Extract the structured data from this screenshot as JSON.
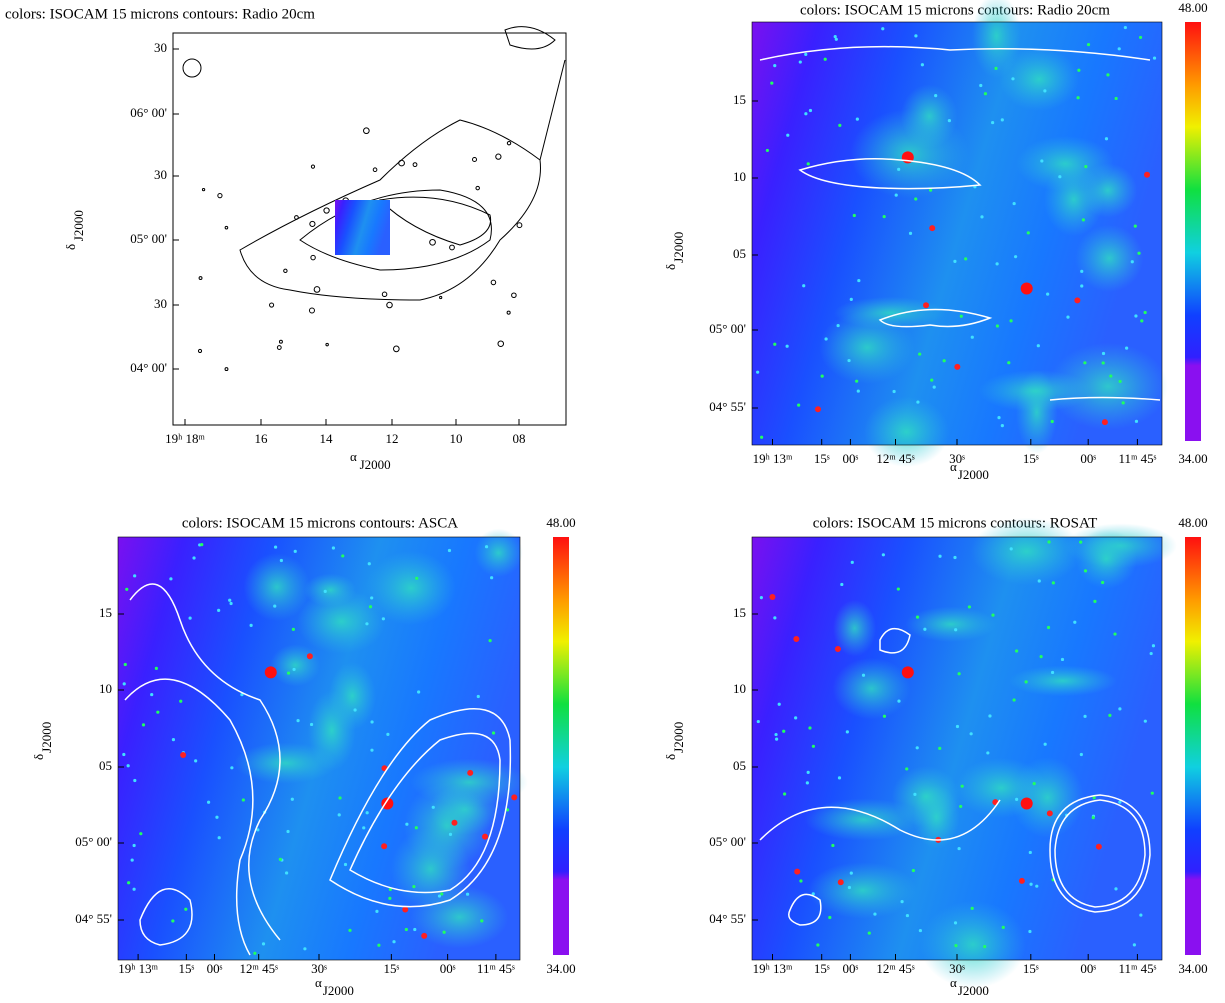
{
  "panels": [
    {
      "title": "colors: ISOCAM 15 microns  contours: Radio 20cm",
      "y_ticks": [
        "30",
        "06° 00'",
        "30",
        "05° 00'",
        "30",
        "04° 00'"
      ],
      "x_ticks": [
        "19ʰ 18ᵐ",
        "16",
        "14",
        "12",
        "10",
        "08"
      ],
      "x_label": {
        "symbol": "α",
        "subscript": "J2000"
      },
      "y_label": {
        "symbol": "δ",
        "subscript": "J2000"
      }
    },
    {
      "title": "colors: ISOCAM 15 microns    contours: Radio 20cm",
      "y_ticks": [
        "15",
        "10",
        "05",
        "05° 00'",
        "04° 55'"
      ],
      "x_ticks": [
        "19ʰ 13ᵐ",
        "15ˢ",
        "00ˢ",
        "12ᵐ 45ˢ",
        "30ˢ",
        "15ˢ",
        "00ˢ",
        "11ᵐ 45ˢ"
      ],
      "x_label": {
        "symbol": "α",
        "subscript": "J2000"
      },
      "y_label": {
        "symbol": "δ",
        "subscript": "J2000"
      },
      "colorbar": {
        "max": "48.00",
        "min": "34.00"
      }
    },
    {
      "title": "colors: ISOCAM 15 microns    contours: ASCA",
      "y_ticks": [
        "15",
        "10",
        "05",
        "05° 00'",
        "04° 55'"
      ],
      "x_ticks": [
        "19ʰ 13ᵐ",
        "15ˢ",
        "00ˢ",
        "12ᵐ 45ˢ",
        "30ˢ",
        "15ˢ",
        "00ˢ",
        "11ᵐ 45ˢ"
      ],
      "x_label": {
        "symbol": "α",
        "subscript": "J2000"
      },
      "y_label": {
        "symbol": "δ",
        "subscript": "J2000"
      },
      "colorbar": {
        "max": "48.00",
        "min": "34.00"
      }
    },
    {
      "title": "colors: ISOCAM 15 microns    contours: ROSAT",
      "y_ticks": [
        "15",
        "10",
        "05",
        "05° 00'",
        "04° 55'"
      ],
      "x_ticks": [
        "19ʰ 13ᵐ",
        "15ˢ",
        "00ˢ",
        "12ᵐ 45ˢ",
        "30ˢ",
        "15ˢ",
        "00ˢ",
        "11ᵐ 45ˢ"
      ],
      "x_label": {
        "symbol": "α",
        "subscript": "J2000"
      },
      "y_label": {
        "symbol": "δ",
        "subscript": "J2000"
      },
      "colorbar": {
        "max": "48.00",
        "min": "34.00"
      }
    }
  ]
}
